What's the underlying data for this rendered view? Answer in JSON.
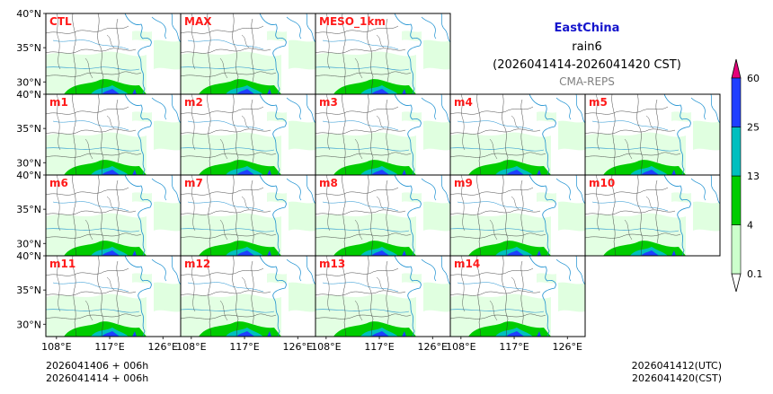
{
  "chart_data": {
    "type": "heatmap",
    "title": {
      "region": "EastChina",
      "variable": "rain6",
      "period": "(2026041414-2026041420 CST)",
      "system": "CMA-REPS"
    },
    "panels": [
      {
        "label": "CTL",
        "row": 0,
        "col": 0
      },
      {
        "label": "MAX",
        "row": 0,
        "col": 1
      },
      {
        "label": "MESO_1km",
        "row": 0,
        "col": 2
      },
      {
        "label": "m1",
        "row": 1,
        "col": 0
      },
      {
        "label": "m2",
        "row": 1,
        "col": 1
      },
      {
        "label": "m3",
        "row": 1,
        "col": 2
      },
      {
        "label": "m4",
        "row": 1,
        "col": 3
      },
      {
        "label": "m5",
        "row": 1,
        "col": 4
      },
      {
        "label": "m6",
        "row": 2,
        "col": 0
      },
      {
        "label": "m7",
        "row": 2,
        "col": 1
      },
      {
        "label": "m8",
        "row": 2,
        "col": 2
      },
      {
        "label": "m9",
        "row": 2,
        "col": 3
      },
      {
        "label": "m10",
        "row": 2,
        "col": 4
      },
      {
        "label": "m11",
        "row": 3,
        "col": 0
      },
      {
        "label": "m12",
        "row": 3,
        "col": 1
      },
      {
        "label": "m13",
        "row": 3,
        "col": 2
      },
      {
        "label": "m14",
        "row": 3,
        "col": 3
      }
    ],
    "lat_ticks": [
      {
        "value": 40,
        "label": "40°N"
      },
      {
        "value": 35,
        "label": "35°N"
      },
      {
        "value": 30,
        "label": "30°N"
      }
    ],
    "lon_ticks": [
      {
        "value": 108,
        "label": "108°E"
      },
      {
        "value": 117,
        "label": "117°E"
      },
      {
        "value": 126,
        "label": "126°E"
      }
    ],
    "lat_range": [
      28.2,
      40
    ],
    "lon_range": [
      106.2,
      129
    ],
    "colorbar": {
      "levels": [
        0.1,
        4,
        13,
        25,
        60
      ],
      "colors": [
        "#ccffcc",
        "#00cc00",
        "#00bfbf",
        "#1f3fff"
      ],
      "under_color": "#ffffff",
      "over_color": "#e6007a",
      "extend": "both"
    },
    "footer_left": [
      "2026041406  +  006h",
      "2026041414  +  006h"
    ],
    "footer_right": [
      "2026041412(UTC)",
      "2026041420(CST)"
    ]
  }
}
